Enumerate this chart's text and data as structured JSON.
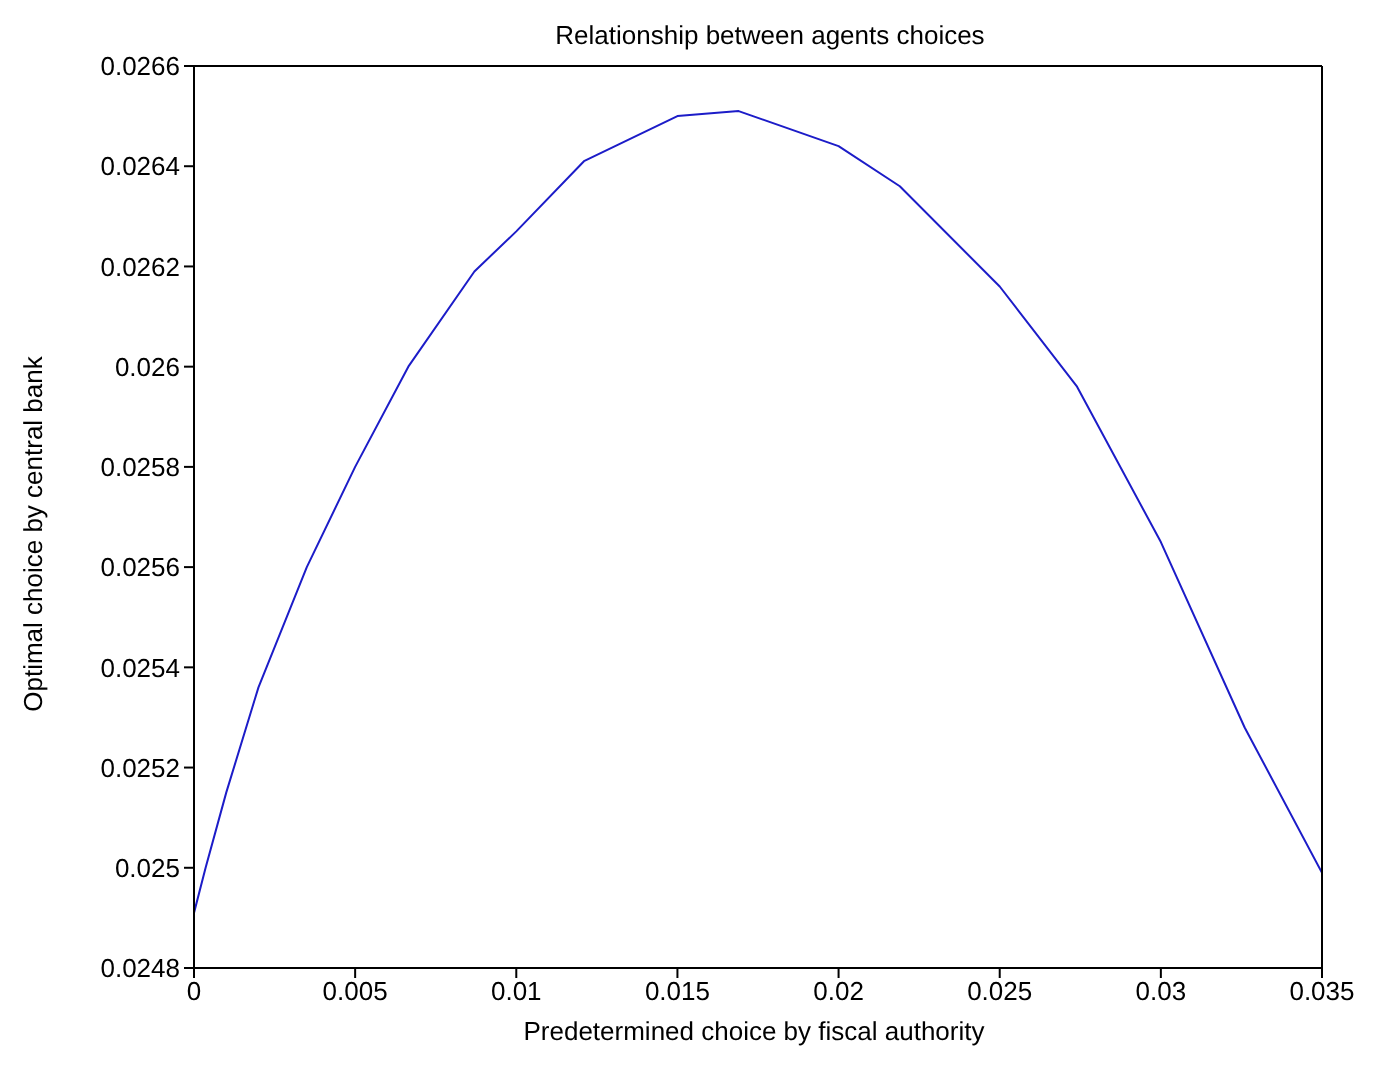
{
  "chart_data": {
    "type": "line",
    "title": "Relationship between agents choices",
    "xlabel": "Predetermined choice by fiscal authority",
    "ylabel": "Optimal choice by central bank",
    "x": [
      0,
      0.00036,
      0.001,
      0.002,
      0.0035,
      0.005,
      0.00665,
      0.0087,
      0.01,
      0.0121,
      0.015,
      0.0169,
      0.02,
      0.0219,
      0.025,
      0.0274,
      0.03,
      0.0326,
      0.035
    ],
    "series": [
      {
        "color": "#1c1cc8",
        "values": [
          0.02491,
          0.025,
          0.02515,
          0.02536,
          0.0256,
          0.0258,
          0.026,
          0.02619,
          0.02627,
          0.02641,
          0.0265,
          0.02651,
          0.02644,
          0.02636,
          0.02616,
          0.02596,
          0.02565,
          0.02528,
          0.02499
        ]
      }
    ],
    "xlim": [
      0,
      0.035
    ],
    "xticks": [
      0,
      0.005,
      0.01,
      0.015,
      0.02,
      0.025,
      0.03,
      0.035
    ],
    "ylim": [
      0.0248,
      0.0266
    ],
    "yticks": [
      0.0248,
      0.025,
      0.0252,
      0.0254,
      0.0256,
      0.0258,
      0.026,
      0.0262,
      0.0264,
      0.0266
    ],
    "grid": false,
    "legend": false,
    "marker": "none",
    "line_style": "solid"
  }
}
